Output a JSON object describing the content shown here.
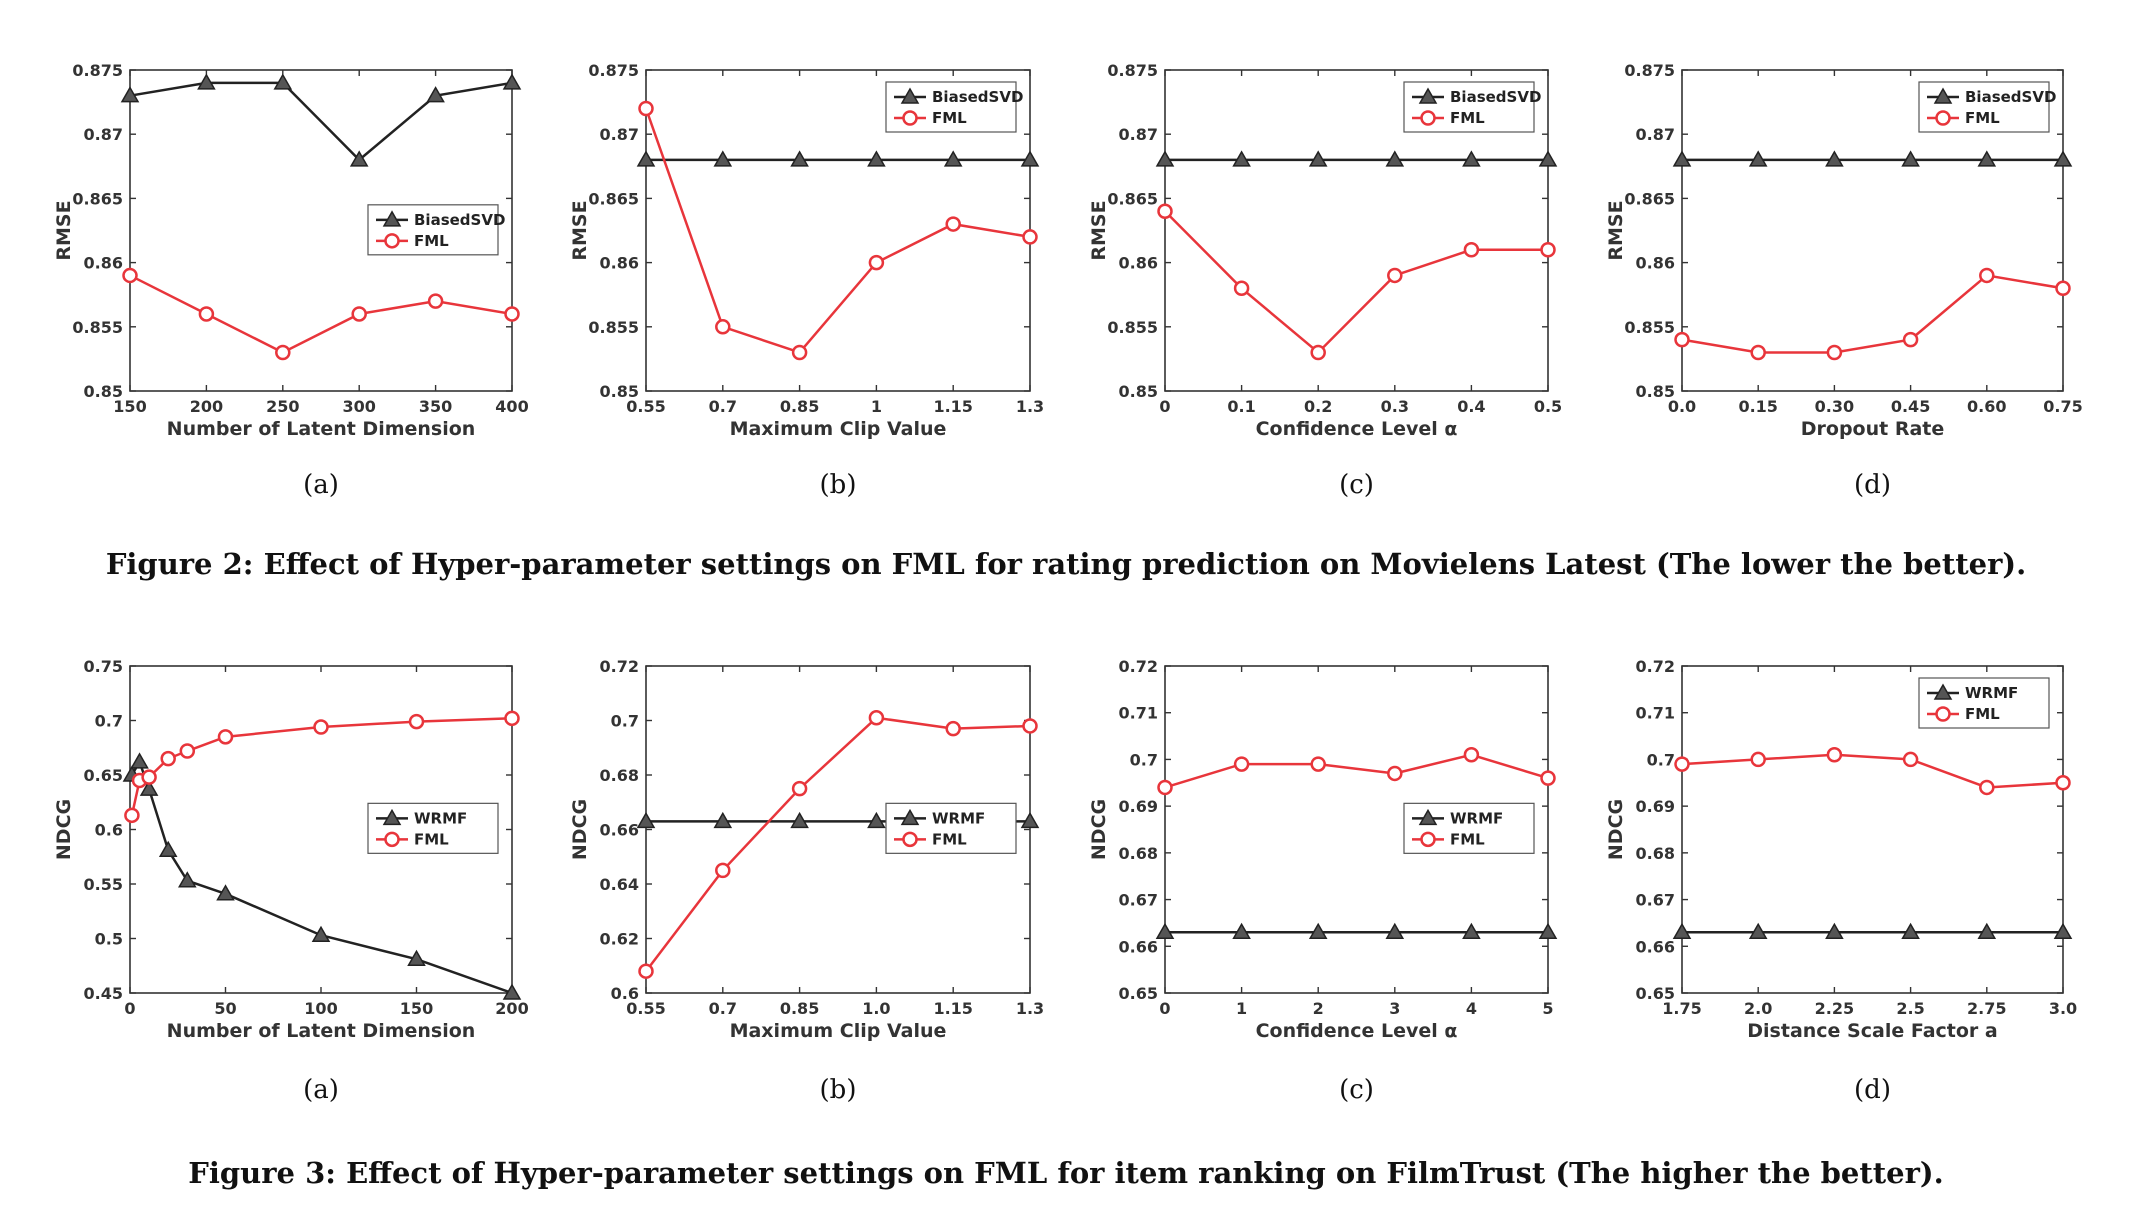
{
  "captions": {
    "fig2": "Figure 2: Effect of Hyper-parameter settings on FML for rating prediction on Movielens Latest (The lower the better).",
    "fig3": "Figure 3: Effect of Hyper-parameter settings on FML for item ranking on FilmTrust (The higher the better)."
  },
  "colors": {
    "baseline": "#222222",
    "fml": "#e8353b",
    "axis": "#333333"
  },
  "chart_data": [
    {
      "type": "line",
      "figure": "Figure 2",
      "panel": "(a)",
      "xlabel": "Number of Latent Dimension",
      "ylabel": "RMSE",
      "x": [
        150,
        200,
        250,
        300,
        350,
        400
      ],
      "xticks": [
        "150",
        "200",
        "250",
        "300",
        "350",
        "400"
      ],
      "xlim": [
        150,
        400
      ],
      "ylim": [
        0.85,
        0.875
      ],
      "yticks": [
        "0.85",
        "0.855",
        "0.86",
        "0.865",
        "0.87",
        "0.875"
      ],
      "legend_position": "center-right",
      "series": [
        {
          "name": "BiasedSVD",
          "marker": "triangle",
          "values": [
            0.873,
            0.874,
            0.874,
            0.868,
            0.873,
            0.874
          ]
        },
        {
          "name": "FML",
          "marker": "circle",
          "values": [
            0.859,
            0.856,
            0.853,
            0.856,
            0.857,
            0.856
          ]
        }
      ]
    },
    {
      "type": "line",
      "figure": "Figure 2",
      "panel": "(b)",
      "xlabel": "Maximum Clip Value",
      "ylabel": "RMSE",
      "x": [
        0.55,
        0.7,
        0.85,
        1.0,
        1.15,
        1.3
      ],
      "xticks": [
        "0.55",
        "0.7",
        "0.85",
        "1",
        "1.15",
        "1.3"
      ],
      "xlim": [
        0.55,
        1.3
      ],
      "ylim": [
        0.85,
        0.875
      ],
      "yticks": [
        "0.85",
        "0.855",
        "0.86",
        "0.865",
        "0.87",
        "0.875"
      ],
      "legend_position": "top-right",
      "series": [
        {
          "name": "BiasedSVD",
          "marker": "triangle",
          "values": [
            0.868,
            0.868,
            0.868,
            0.868,
            0.868,
            0.868
          ]
        },
        {
          "name": "FML",
          "marker": "circle",
          "values": [
            0.872,
            0.855,
            0.853,
            0.86,
            0.863,
            0.862
          ]
        }
      ]
    },
    {
      "type": "line",
      "figure": "Figure 2",
      "panel": "(c)",
      "xlabel": "Confidence Level α",
      "ylabel": "RMSE",
      "x": [
        0,
        0.1,
        0.2,
        0.3,
        0.4,
        0.5
      ],
      "xticks": [
        "0",
        "0.1",
        "0.2",
        "0.3",
        "0.4",
        "0.5"
      ],
      "xlim": [
        0,
        0.5
      ],
      "ylim": [
        0.85,
        0.875
      ],
      "yticks": [
        "0.85",
        "0.855",
        "0.86",
        "0.865",
        "0.87",
        "0.875"
      ],
      "legend_position": "top-right",
      "series": [
        {
          "name": "BiasedSVD",
          "marker": "triangle",
          "values": [
            0.868,
            0.868,
            0.868,
            0.868,
            0.868,
            0.868
          ]
        },
        {
          "name": "FML",
          "marker": "circle",
          "values": [
            0.864,
            0.858,
            0.853,
            0.859,
            0.861,
            0.861
          ]
        }
      ]
    },
    {
      "type": "line",
      "figure": "Figure 2",
      "panel": "(d)",
      "xlabel": "Dropout Rate",
      "ylabel": "RMSE",
      "x": [
        0.0,
        0.15,
        0.3,
        0.45,
        0.6,
        0.75
      ],
      "xticks": [
        "0.0",
        "0.15",
        "0.30",
        "0.45",
        "0.60",
        "0.75"
      ],
      "xlim": [
        0,
        0.75
      ],
      "ylim": [
        0.85,
        0.875
      ],
      "yticks": [
        "0.85",
        "0.855",
        "0.86",
        "0.865",
        "0.87",
        "0.875"
      ],
      "legend_position": "top-right",
      "series": [
        {
          "name": "BiasedSVD",
          "marker": "triangle",
          "values": [
            0.868,
            0.868,
            0.868,
            0.868,
            0.868,
            0.868
          ]
        },
        {
          "name": "FML",
          "marker": "circle",
          "values": [
            0.854,
            0.853,
            0.853,
            0.854,
            0.859,
            0.858
          ]
        }
      ]
    },
    {
      "type": "line",
      "figure": "Figure 3",
      "panel": "(a)",
      "xlabel": "Number of Latent Dimension",
      "ylabel": "NDCG",
      "x": [
        1,
        5,
        10,
        20,
        30,
        50,
        100,
        150,
        200
      ],
      "xticks": [
        "0",
        "50",
        "100",
        "150",
        "200"
      ],
      "xtick_values": [
        0,
        50,
        100,
        150,
        200
      ],
      "xlim": [
        0,
        200
      ],
      "ylim": [
        0.45,
        0.75
      ],
      "yticks": [
        "0.45",
        "0.5",
        "0.55",
        "0.6",
        "0.65",
        "0.7",
        "0.75"
      ],
      "legend_position": "center-right",
      "series": [
        {
          "name": "WRMF",
          "marker": "triangle",
          "values": [
            0.65,
            0.662,
            0.637,
            0.581,
            0.553,
            0.541,
            0.503,
            0.481,
            0.45
          ]
        },
        {
          "name": "FML",
          "marker": "circle",
          "values": [
            0.613,
            0.645,
            0.648,
            0.665,
            0.672,
            0.685,
            0.694,
            0.699,
            0.702
          ]
        }
      ]
    },
    {
      "type": "line",
      "figure": "Figure 3",
      "panel": "(b)",
      "xlabel": "Maximum Clip Value",
      "ylabel": "NDCG",
      "x": [
        0.55,
        0.7,
        0.85,
        1.0,
        1.15,
        1.3
      ],
      "xticks": [
        "0.55",
        "0.7",
        "0.85",
        "1.0",
        "1.15",
        "1.3"
      ],
      "xlim": [
        0.55,
        1.3
      ],
      "ylim": [
        0.6,
        0.72
      ],
      "yticks": [
        "0.6",
        "0.62",
        "0.64",
        "0.66",
        "0.68",
        "0.7",
        "0.72"
      ],
      "legend_position": "center-right",
      "series": [
        {
          "name": "WRMF",
          "marker": "triangle",
          "values": [
            0.663,
            0.663,
            0.663,
            0.663,
            0.663,
            0.663
          ]
        },
        {
          "name": "FML",
          "marker": "circle",
          "values": [
            0.608,
            0.645,
            0.675,
            0.701,
            0.697,
            0.698
          ]
        }
      ]
    },
    {
      "type": "line",
      "figure": "Figure 3",
      "panel": "(c)",
      "xlabel": "Confidence Level α",
      "ylabel": "NDCG",
      "x": [
        0,
        1,
        2,
        3,
        4,
        5
      ],
      "xticks": [
        "0",
        "1",
        "2",
        "3",
        "4",
        "5"
      ],
      "xlim": [
        0,
        5
      ],
      "ylim": [
        0.65,
        0.72
      ],
      "yticks": [
        "0.65",
        "0.66",
        "0.67",
        "0.68",
        "0.69",
        "0.7",
        "0.71",
        "0.72"
      ],
      "legend_position": "center-right",
      "series": [
        {
          "name": "WRMF",
          "marker": "triangle",
          "values": [
            0.663,
            0.663,
            0.663,
            0.663,
            0.663,
            0.663
          ]
        },
        {
          "name": "FML",
          "marker": "circle",
          "values": [
            0.694,
            0.699,
            0.699,
            0.697,
            0.701,
            0.696
          ]
        }
      ]
    },
    {
      "type": "line",
      "figure": "Figure 3",
      "panel": "(d)",
      "xlabel": "Distance Scale Factor a",
      "ylabel": "NDCG",
      "x": [
        1.75,
        2.0,
        2.25,
        2.5,
        2.75,
        3.0
      ],
      "xticks": [
        "1.75",
        "2.0",
        "2.25",
        "2.5",
        "2.75",
        "3.0"
      ],
      "xlim": [
        1.75,
        3.0
      ],
      "ylim": [
        0.65,
        0.72
      ],
      "yticks": [
        "0.65",
        "0.66",
        "0.67",
        "0.68",
        "0.69",
        "0.7",
        "0.71",
        "0.72"
      ],
      "legend_position": "top-right",
      "series": [
        {
          "name": "WRMF",
          "marker": "triangle",
          "values": [
            0.663,
            0.663,
            0.663,
            0.663,
            0.663,
            0.663
          ]
        },
        {
          "name": "FML",
          "marker": "circle",
          "values": [
            0.699,
            0.7,
            0.701,
            0.7,
            0.694,
            0.695
          ]
        }
      ]
    }
  ]
}
